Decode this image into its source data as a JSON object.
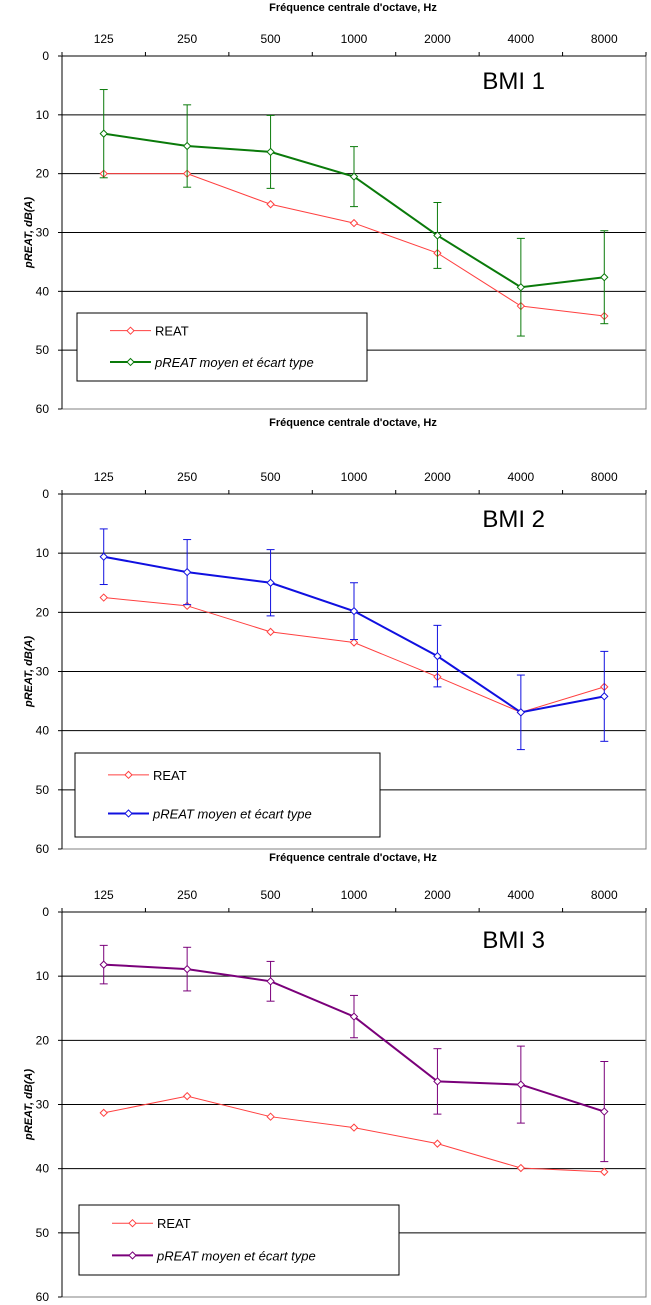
{
  "chart_data": [
    {
      "type": "line",
      "title": "BMI 1",
      "xlabel": "Fréquence centrale d'octave, Hz",
      "ylabel": "pREAT, dB(A)",
      "categories": [
        "125",
        "250",
        "500",
        "1000",
        "2000",
        "4000",
        "8000"
      ],
      "ylim": [
        60,
        0
      ],
      "yticks": [
        "0",
        "10",
        "20",
        "30",
        "40",
        "50",
        "60"
      ],
      "grid": true,
      "legend_position": "bottom-left",
      "series": [
        {
          "name": "REAT",
          "color": "#ff4040",
          "values": [
            20,
            20,
            25.2,
            28.4,
            33.5,
            42.5,
            44.2
          ]
        },
        {
          "name": "pREAT moyen et écart type",
          "color": "#0a7a0a",
          "values": [
            13.2,
            15.3,
            16.3,
            20.5,
            30.5,
            39.3,
            37.6
          ],
          "error": [
            7.5,
            7,
            6.2,
            5.1,
            5.6,
            8.3,
            7.9
          ]
        }
      ]
    },
    {
      "type": "line",
      "title": "BMI 2",
      "xlabel": "Fréquence centrale d'octave, Hz",
      "ylabel": "pREAT, dB(A)",
      "categories": [
        "125",
        "250",
        "500",
        "1000",
        "2000",
        "4000",
        "8000"
      ],
      "ylim": [
        60,
        0
      ],
      "yticks": [
        "0",
        "10",
        "20",
        "30",
        "40",
        "50",
        "60"
      ],
      "grid": true,
      "legend_position": "bottom-left",
      "series": [
        {
          "name": "REAT",
          "color": "#ff4040",
          "values": [
            17.5,
            18.9,
            23.3,
            25.1,
            30.9,
            36.9,
            32.6
          ]
        },
        {
          "name": "pREAT moyen et écart type",
          "color": "#1010e0",
          "values": [
            10.6,
            13.2,
            15,
            19.8,
            27.4,
            36.9,
            34.2
          ],
          "error": [
            4.7,
            5.5,
            5.6,
            4.8,
            5.2,
            6.3,
            7.6
          ]
        }
      ]
    },
    {
      "type": "line",
      "title": "BMI 3",
      "xlabel": "Fréquence centrale d'octave, Hz",
      "ylabel": "pREAT, dB(A)",
      "categories": [
        "125",
        "250",
        "500",
        "1000",
        "2000",
        "4000",
        "8000"
      ],
      "ylim": [
        60,
        0
      ],
      "yticks": [
        "0",
        "10",
        "20",
        "30",
        "40",
        "50",
        "60"
      ],
      "grid": true,
      "legend_position": "bottom-left",
      "series": [
        {
          "name": "REAT",
          "color": "#ff4040",
          "values": [
            31.3,
            28.7,
            31.9,
            33.6,
            36.1,
            39.9,
            40.5
          ]
        },
        {
          "name": "pREAT moyen et écart type",
          "color": "#7a007a",
          "values": [
            8.2,
            8.9,
            10.8,
            16.3,
            26.4,
            26.9,
            31.1
          ],
          "error": [
            3,
            3.4,
            3.1,
            3.3,
            5.1,
            6,
            7.8
          ]
        }
      ]
    }
  ]
}
